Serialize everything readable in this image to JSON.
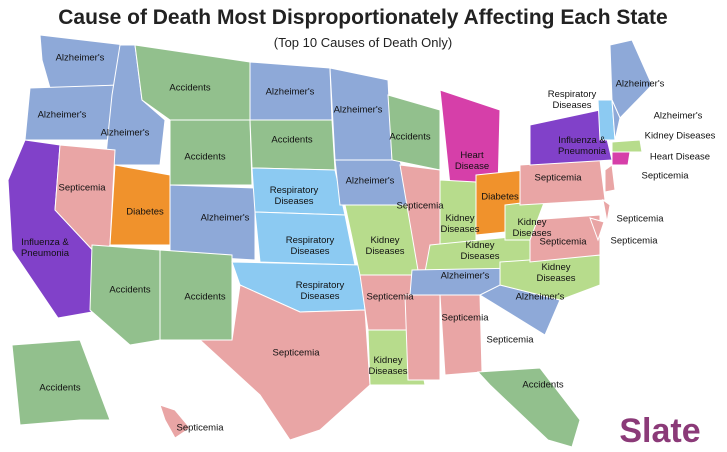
{
  "title": "Cause of Death Most Disproportionately Affecting Each State",
  "subtitle": "(Top 10 Causes of Death Only)",
  "labels": [
    [
      "Alzheimer's"
    ],
    [
      "Alzheimer's"
    ],
    [
      "Alzheimer's"
    ],
    [
      "Accidents"
    ],
    [
      "Accidents"
    ],
    [
      "Influenza &",
      "Pneumonia"
    ],
    [
      "Septicemia"
    ],
    [
      "Diabetes"
    ],
    [
      "Alzheimer's"
    ],
    [
      "Accidents"
    ],
    [
      "Accidents"
    ],
    [
      "Alzheimer's"
    ],
    [
      "Accidents"
    ],
    [
      "Respiratory",
      "Diseases"
    ],
    [
      "Respiratory",
      "Diseases"
    ],
    [
      "Respiratory",
      "Diseases"
    ],
    [
      "Septicemia"
    ],
    [
      "Alzheimer's"
    ],
    [
      "Alzheimer's"
    ],
    [
      "Kidney",
      "Diseases"
    ],
    [
      "Septicemia"
    ],
    [
      "Kidney",
      "Diseases"
    ],
    [
      "Accidents"
    ],
    [
      "Septicemia"
    ],
    [
      "Heart",
      "Disease"
    ],
    [
      "Kidney",
      "Diseases"
    ],
    [
      "Diabetes"
    ],
    [
      "Kidney",
      "Diseases"
    ],
    [
      "Alzheimer's"
    ],
    [
      "Septicemia"
    ],
    [
      "Septicemia"
    ],
    [
      "Accidents"
    ],
    [
      "Alzheimer's"
    ],
    [
      "Kidney",
      "Diseases"
    ],
    [
      "Septicemia"
    ],
    [
      "Kidney",
      "Diseases"
    ],
    [
      "Septicemia"
    ],
    [
      "Influenza &",
      "Pneumonia"
    ],
    [
      "Alzheimer's"
    ],
    [
      "Respiratory",
      "Diseases"
    ],
    [
      "Alzheimer's"
    ],
    [
      "Kidney Diseases"
    ],
    [
      "Heart Disease"
    ],
    [
      "Septicemia"
    ],
    [
      "Septicemia"
    ],
    [
      "Septicemia"
    ],
    [
      "Accidents"
    ],
    [
      "Septicemia"
    ]
  ],
  "logo": "Slate"
}
